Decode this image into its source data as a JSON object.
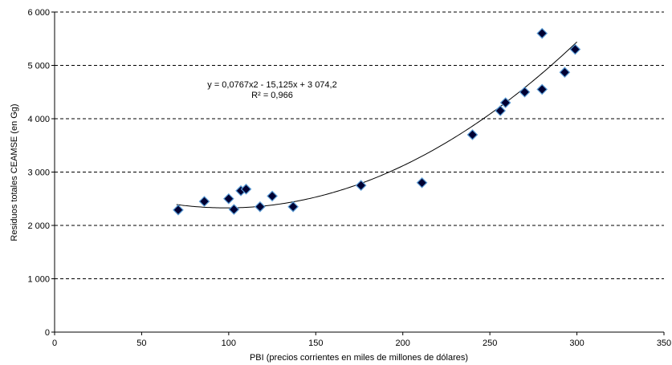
{
  "chart_data": {
    "type": "scatter",
    "title": "",
    "xlabel": "PBI (precios corrientes en miles de millones de dólares)",
    "ylabel": "Residuos totales CEAMSE (en Gg)",
    "xlim": [
      0,
      350
    ],
    "ylim": [
      0,
      6000
    ],
    "x_ticks": [
      0,
      50,
      100,
      150,
      200,
      250,
      300,
      350
    ],
    "y_ticks": [
      0,
      1000,
      2000,
      3000,
      4000,
      5000,
      6000
    ],
    "x_tick_labels": [
      "0",
      "50",
      "100",
      "150",
      "200",
      "250",
      "300",
      "350"
    ],
    "y_tick_labels": [
      "0",
      "1 000",
      "2 000",
      "3 000",
      "4 000",
      "5 000",
      "6 000"
    ],
    "grid": "horizontal-dashed",
    "legend": "none",
    "points": [
      {
        "x": 71,
        "y": 2290
      },
      {
        "x": 86,
        "y": 2450
      },
      {
        "x": 100,
        "y": 2500
      },
      {
        "x": 103,
        "y": 2300
      },
      {
        "x": 107,
        "y": 2650
      },
      {
        "x": 110,
        "y": 2680
      },
      {
        "x": 118,
        "y": 2350
      },
      {
        "x": 125,
        "y": 2550
      },
      {
        "x": 137,
        "y": 2350
      },
      {
        "x": 176,
        "y": 2750
      },
      {
        "x": 211,
        "y": 2800
      },
      {
        "x": 240,
        "y": 3700
      },
      {
        "x": 256,
        "y": 4150
      },
      {
        "x": 259,
        "y": 4300
      },
      {
        "x": 270,
        "y": 4500
      },
      {
        "x": 280,
        "y": 4550
      },
      {
        "x": 280,
        "y": 5600
      },
      {
        "x": 293,
        "y": 4870
      },
      {
        "x": 299,
        "y": 5300
      }
    ],
    "trendline": {
      "type": "polynomial",
      "coefficients": [
        0.0767,
        -15.125,
        3074.2
      ],
      "x_range": [
        70,
        300
      ]
    },
    "annotations": {
      "equation": "y = 0,0767x2 - 15,125x + 3 074,2",
      "r_squared": "R² = 0,966"
    },
    "colors": {
      "marker_fill": "#000033",
      "marker_stroke": "#5a9bd5",
      "trendline": "#000000",
      "grid": "#000000"
    }
  }
}
